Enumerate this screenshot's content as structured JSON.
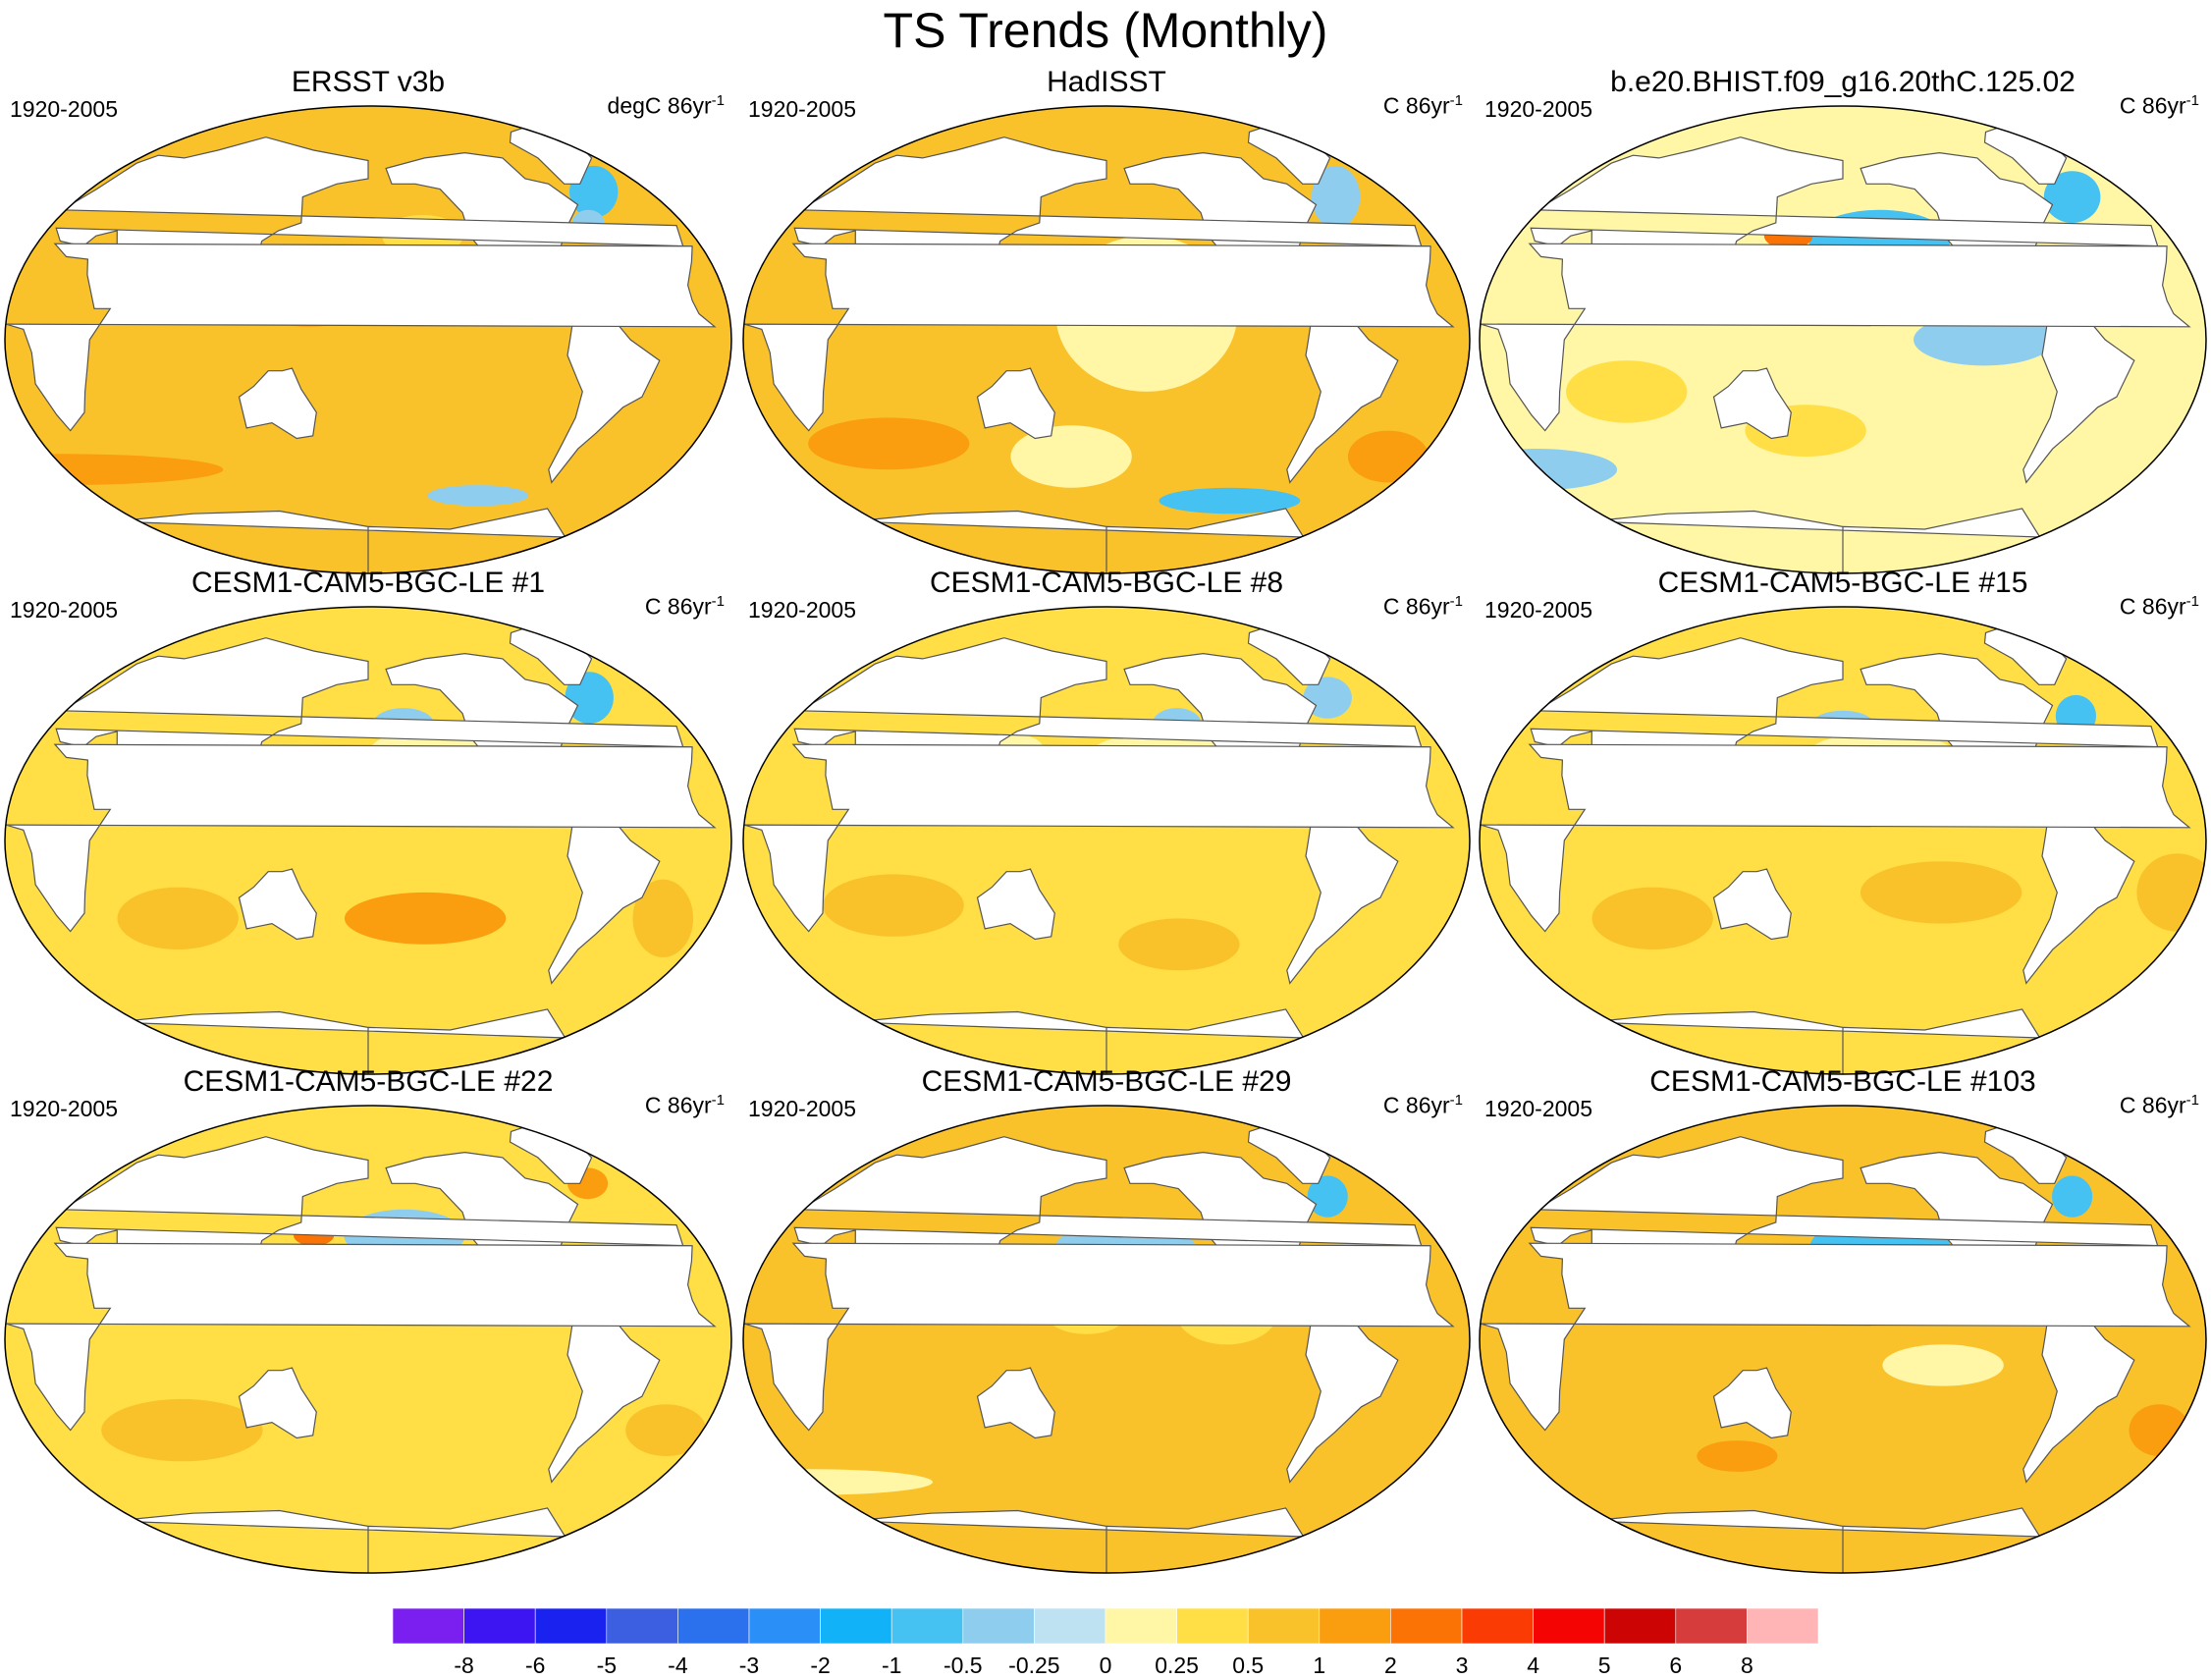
{
  "title": "TS Trends (Monthly)",
  "panels": [
    {
      "title": "ERSST v3b",
      "period": "1920-2005",
      "units_prefix": "degC 86yr",
      "units_sup": "-1"
    },
    {
      "title": "HadISST",
      "period": "1920-2005",
      "units_prefix": "C 86yr",
      "units_sup": "-1"
    },
    {
      "title": "b.e20.BHIST.f09_g16.20thC.125.02",
      "period": "1920-2005",
      "units_prefix": "C 86yr",
      "units_sup": "-1"
    },
    {
      "title": "CESM1-CAM5-BGC-LE #1",
      "period": "1920-2005",
      "units_prefix": "C 86yr",
      "units_sup": "-1"
    },
    {
      "title": "CESM1-CAM5-BGC-LE #8",
      "period": "1920-2005",
      "units_prefix": "C 86yr",
      "units_sup": "-1"
    },
    {
      "title": "CESM1-CAM5-BGC-LE #15",
      "period": "1920-2005",
      "units_prefix": "C 86yr",
      "units_sup": "-1"
    },
    {
      "title": "CESM1-CAM5-BGC-LE #22",
      "period": "1920-2005",
      "units_prefix": "C 86yr",
      "units_sup": "-1"
    },
    {
      "title": "CESM1-CAM5-BGC-LE #29",
      "period": "1920-2005",
      "units_prefix": "C 86yr",
      "units_sup": "-1"
    },
    {
      "title": "CESM1-CAM5-BGC-LE #103",
      "period": "1920-2005",
      "units_prefix": "C 86yr",
      "units_sup": "-1"
    }
  ],
  "colorbar": {
    "colors": [
      "#7a1ff0",
      "#3d14f2",
      "#1a22f0",
      "#3b5fe0",
      "#2b70ec",
      "#2b8ff8",
      "#12b2f8",
      "#45c1f2",
      "#8fcdee",
      "#bfe2f2",
      "#fff6a6",
      "#ffdf45",
      "#fac22a",
      "#fa9e10",
      "#fa7304",
      "#fa3c04",
      "#f50404",
      "#cc0404",
      "#d63c3c",
      "#ffb5b5"
    ],
    "labels": [
      "-8",
      "-6",
      "-5",
      "-4",
      "-3",
      "-2",
      "-1",
      "-0.5",
      "-0.25",
      "0",
      "0.25",
      "0.5",
      "1",
      "2",
      "3",
      "4",
      "5",
      "6",
      "8"
    ]
  },
  "map_styles": [
    {
      "base": "#fac22a",
      "patches": [
        {
          "lon": -40,
          "lat": 57,
          "rx": 12,
          "ry": 10,
          "color": "#45c1f2"
        },
        {
          "lon": -55,
          "lat": 45,
          "rx": 8,
          "ry": 5,
          "color": "#8fcdee"
        },
        {
          "lon": 150,
          "lat": 20,
          "rx": 40,
          "ry": 15,
          "color": "#fa9e10"
        },
        {
          "lon": 0,
          "lat": -50,
          "rx": 80,
          "ry": 6,
          "color": "#fa9e10"
        },
        {
          "lon": -150,
          "lat": 40,
          "rx": 20,
          "ry": 8,
          "color": "#ffdf45"
        },
        {
          "lon": -110,
          "lat": -60,
          "rx": 25,
          "ry": 4,
          "color": "#8fcdee"
        }
      ]
    },
    {
      "base": "#fac22a",
      "patches": [
        {
          "lon": -160,
          "lat": 10,
          "rx": 45,
          "ry": 30,
          "color": "#fff6a6"
        },
        {
          "lon": 160,
          "lat": -45,
          "rx": 30,
          "ry": 12,
          "color": "#fff6a6"
        },
        {
          "lon": -40,
          "lat": 55,
          "rx": 12,
          "ry": 12,
          "color": "#8fcdee"
        },
        {
          "lon": -100,
          "lat": -62,
          "rx": 35,
          "ry": 5,
          "color": "#45c1f2"
        },
        {
          "lon": 60,
          "lat": -40,
          "rx": 40,
          "ry": 10,
          "color": "#fa9e10"
        },
        {
          "lon": -20,
          "lat": -45,
          "rx": 20,
          "ry": 10,
          "color": "#fa9e10"
        }
      ]
    },
    {
      "base": "#fff6a6",
      "patches": [
        {
          "lon": -160,
          "lat": 38,
          "rx": 35,
          "ry": 12,
          "color": "#45c1f2"
        },
        {
          "lon": -40,
          "lat": 55,
          "rx": 14,
          "ry": 10,
          "color": "#45c1f2"
        },
        {
          "lon": -110,
          "lat": 0,
          "rx": 35,
          "ry": 10,
          "color": "#8fcdee"
        },
        {
          "lon": 150,
          "lat": 40,
          "rx": 12,
          "ry": 5,
          "color": "#fa7304"
        },
        {
          "lon": 160,
          "lat": -35,
          "rx": 30,
          "ry": 10,
          "color": "#ffdf45"
        },
        {
          "lon": 0,
          "lat": -50,
          "rx": 40,
          "ry": 8,
          "color": "#8fcdee"
        },
        {
          "lon": 70,
          "lat": -20,
          "rx": 30,
          "ry": 12,
          "color": "#ffdf45"
        }
      ]
    },
    {
      "base": "#ffdf45",
      "patches": [
        {
          "lon": -140,
          "lat": 30,
          "rx": 40,
          "ry": 15,
          "color": "#fff6a6"
        },
        {
          "lon": -45,
          "lat": 55,
          "rx": 12,
          "ry": 10,
          "color": "#45c1f2"
        },
        {
          "lon": -160,
          "lat": 45,
          "rx": 15,
          "ry": 6,
          "color": "#8fcdee"
        },
        {
          "lon": -150,
          "lat": -30,
          "rx": 40,
          "ry": 10,
          "color": "#fa9e10"
        },
        {
          "lon": 80,
          "lat": -30,
          "rx": 30,
          "ry": 12,
          "color": "#fac22a"
        },
        {
          "lon": -25,
          "lat": -30,
          "rx": 15,
          "ry": 15,
          "color": "#fac22a"
        }
      ]
    },
    {
      "base": "#ffdf45",
      "patches": [
        {
          "lon": -150,
          "lat": 30,
          "rx": 40,
          "ry": 12,
          "color": "#fff6a6"
        },
        {
          "lon": -45,
          "lat": 55,
          "rx": 12,
          "ry": 8,
          "color": "#8fcdee"
        },
        {
          "lon": -140,
          "lat": 45,
          "rx": 12,
          "ry": 6,
          "color": "#8fcdee"
        },
        {
          "lon": 70,
          "lat": -25,
          "rx": 35,
          "ry": 12,
          "color": "#fac22a"
        },
        {
          "lon": -140,
          "lat": -40,
          "rx": 30,
          "ry": 10,
          "color": "#fac22a"
        },
        {
          "lon": 130,
          "lat": 35,
          "rx": 15,
          "ry": 6,
          "color": "#fff6a6"
        }
      ]
    },
    {
      "base": "#ffdf45",
      "patches": [
        {
          "lon": -160,
          "lat": 30,
          "rx": 40,
          "ry": 12,
          "color": "#fff6a6"
        },
        {
          "lon": -45,
          "lat": 48,
          "rx": 10,
          "ry": 8,
          "color": "#45c1f2"
        },
        {
          "lon": -180,
          "lat": 45,
          "rx": 15,
          "ry": 5,
          "color": "#8fcdee"
        },
        {
          "lon": -130,
          "lat": -20,
          "rx": 40,
          "ry": 12,
          "color": "#fac22a"
        },
        {
          "lon": 80,
          "lat": -30,
          "rx": 30,
          "ry": 12,
          "color": "#fac22a"
        },
        {
          "lon": -10,
          "lat": -20,
          "rx": 20,
          "ry": 15,
          "color": "#fac22a"
        }
      ]
    },
    {
      "base": "#ffdf45",
      "patches": [
        {
          "lon": -160,
          "lat": 40,
          "rx": 30,
          "ry": 10,
          "color": "#8fcdee"
        },
        {
          "lon": 150,
          "lat": 40,
          "rx": 10,
          "ry": 4,
          "color": "#fa7304"
        },
        {
          "lon": -140,
          "lat": 20,
          "rx": 35,
          "ry": 10,
          "color": "#fff6a6"
        },
        {
          "lon": 80,
          "lat": -35,
          "rx": 40,
          "ry": 12,
          "color": "#fac22a"
        },
        {
          "lon": -20,
          "lat": -35,
          "rx": 20,
          "ry": 10,
          "color": "#fac22a"
        },
        {
          "lon": -40,
          "lat": 60,
          "rx": 10,
          "ry": 6,
          "color": "#fa9e10"
        }
      ]
    },
    {
      "base": "#fac22a",
      "patches": [
        {
          "lon": -170,
          "lat": 35,
          "rx": 35,
          "ry": 10,
          "color": "#8fcdee"
        },
        {
          "lon": -45,
          "lat": 55,
          "rx": 10,
          "ry": 8,
          "color": "#45c1f2"
        },
        {
          "lon": -60,
          "lat": 42,
          "rx": 5,
          "ry": 3,
          "color": "#fa7304"
        },
        {
          "lon": -120,
          "lat": 10,
          "rx": 25,
          "ry": 12,
          "color": "#ffdf45"
        },
        {
          "lon": 170,
          "lat": 10,
          "rx": 20,
          "ry": 8,
          "color": "#ffdf45"
        },
        {
          "lon": 0,
          "lat": -55,
          "rx": 60,
          "ry": 5,
          "color": "#fff6a6"
        }
      ]
    },
    {
      "base": "#fac22a",
      "patches": [
        {
          "lon": -160,
          "lat": 35,
          "rx": 35,
          "ry": 12,
          "color": "#45c1f2"
        },
        {
          "lon": -40,
          "lat": 55,
          "rx": 10,
          "ry": 8,
          "color": "#45c1f2"
        },
        {
          "lon": -55,
          "lat": 42,
          "rx": 4,
          "ry": 3,
          "color": "#fa7304"
        },
        {
          "lon": -130,
          "lat": -10,
          "rx": 30,
          "ry": 8,
          "color": "#fff6a6"
        },
        {
          "lon": -10,
          "lat": -35,
          "rx": 15,
          "ry": 10,
          "color": "#fa9e10"
        },
        {
          "lon": 120,
          "lat": -45,
          "rx": 20,
          "ry": 6,
          "color": "#fa9e10"
        }
      ]
    }
  ]
}
